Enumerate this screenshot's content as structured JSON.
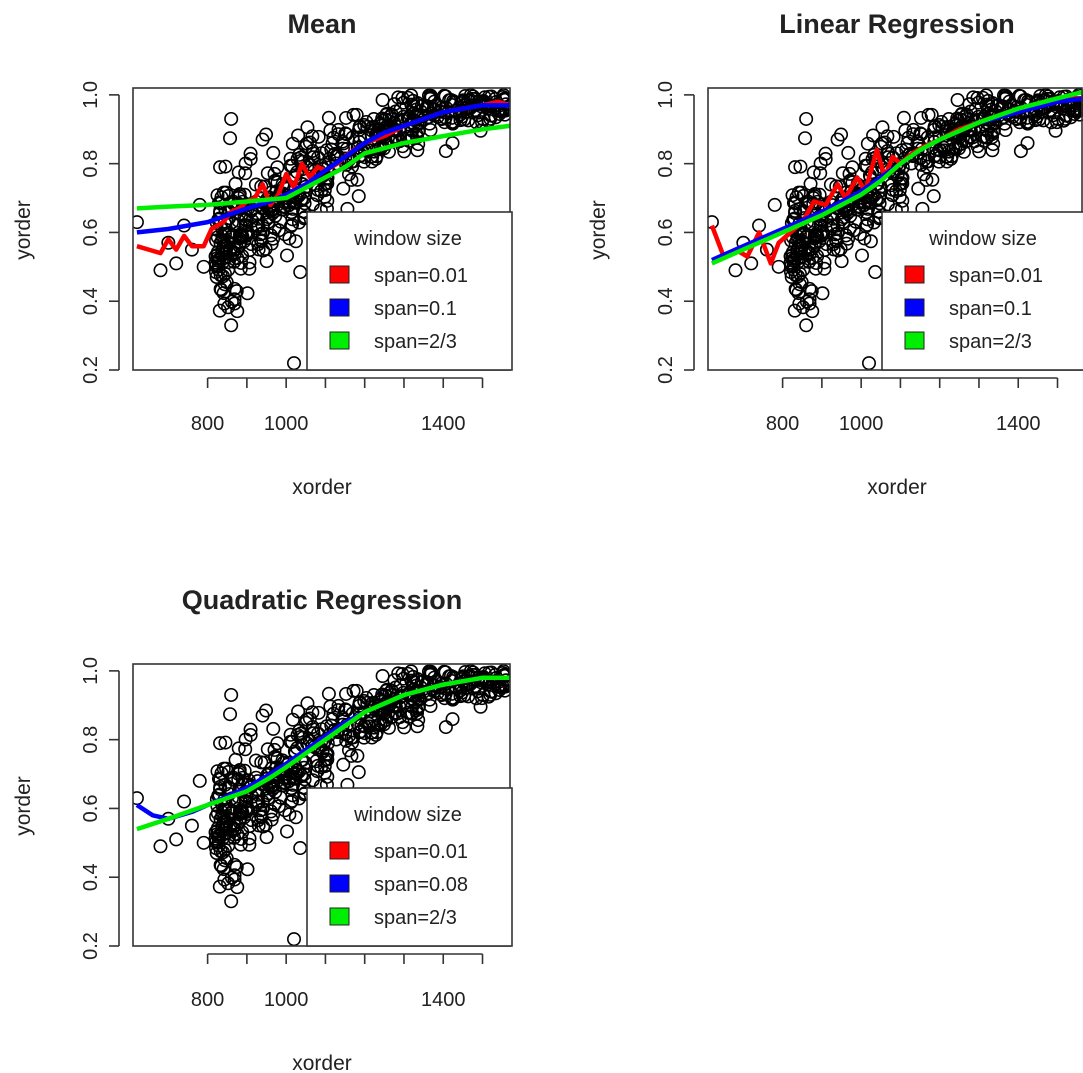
{
  "chart_data": [
    {
      "type": "scatter",
      "title": "Mean",
      "xlabel": "xorder",
      "ylabel": "yorder",
      "xlim": [
        610,
        1570
      ],
      "ylim": [
        0.2,
        1.02
      ],
      "x_ticks": [
        "800",
        "1000",
        "1400"
      ],
      "y_ticks": [
        "0.2",
        "0.4",
        "0.6",
        "0.8",
        "1.0"
      ],
      "legend": {
        "title": "window size",
        "position": "bottom-right",
        "entries": [
          {
            "label": "span=0.01",
            "color": "#ff0000"
          },
          {
            "label": "span=0.1",
            "color": "#0000ff"
          },
          {
            "label": "span=2/3",
            "color": "#00ee00"
          }
        ]
      },
      "outliers": [
        [
          620,
          0.63
        ],
        [
          860,
          0.93
        ],
        [
          860,
          0.33
        ],
        [
          1020,
          0.22
        ],
        [
          680,
          0.49
        ],
        [
          720,
          0.51
        ],
        [
          760,
          0.55
        ],
        [
          790,
          0.5
        ],
        [
          740,
          0.62
        ],
        [
          830,
          0.64
        ],
        [
          780,
          0.68
        ],
        [
          940,
          0.87
        ],
        [
          700,
          0.57
        ]
      ],
      "series": [
        {
          "name": "span=0.01",
          "color": "#ff0000",
          "x": [
            620,
            650,
            680,
            700,
            720,
            740,
            760,
            790,
            810,
            840,
            860,
            880,
            900,
            920,
            940,
            960,
            980,
            1000,
            1020,
            1040,
            1060,
            1080,
            1100,
            1130,
            1160,
            1200,
            1250,
            1300,
            1350,
            1400,
            1450,
            1500,
            1540,
            1570
          ],
          "y": [
            0.56,
            0.55,
            0.54,
            0.58,
            0.55,
            0.59,
            0.56,
            0.56,
            0.61,
            0.63,
            0.66,
            0.67,
            0.69,
            0.7,
            0.74,
            0.68,
            0.71,
            0.77,
            0.73,
            0.8,
            0.76,
            0.79,
            0.78,
            0.8,
            0.83,
            0.86,
            0.88,
            0.91,
            0.93,
            0.95,
            0.96,
            0.97,
            0.98,
            0.97
          ]
        },
        {
          "name": "span=0.1",
          "color": "#0000ff",
          "x": [
            620,
            700,
            800,
            900,
            960,
            1000,
            1050,
            1100,
            1150,
            1200,
            1250,
            1300,
            1350,
            1400,
            1450,
            1500,
            1570
          ],
          "y": [
            0.6,
            0.61,
            0.63,
            0.67,
            0.69,
            0.71,
            0.74,
            0.78,
            0.82,
            0.86,
            0.89,
            0.91,
            0.93,
            0.95,
            0.96,
            0.97,
            0.97
          ]
        },
        {
          "name": "span=2/3",
          "color": "#00ee00",
          "x": [
            620,
            700,
            800,
            900,
            1000,
            1050,
            1100,
            1150,
            1200,
            1300,
            1400,
            1500,
            1570
          ],
          "y": [
            0.67,
            0.675,
            0.68,
            0.69,
            0.7,
            0.73,
            0.76,
            0.79,
            0.83,
            0.86,
            0.88,
            0.9,
            0.91
          ]
        }
      ]
    },
    {
      "type": "scatter",
      "title": "Linear Regression",
      "xlabel": "xorder",
      "ylabel": "yorder",
      "xlim": [
        610,
        1570
      ],
      "ylim": [
        0.2,
        1.02
      ],
      "x_ticks": [
        "800",
        "1000",
        "1400"
      ],
      "y_ticks": [
        "0.2",
        "0.4",
        "0.6",
        "0.8",
        "1.0"
      ],
      "legend": {
        "title": "window size",
        "position": "bottom-right",
        "entries": [
          {
            "label": "span=0.01",
            "color": "#ff0000"
          },
          {
            "label": "span=0.1",
            "color": "#0000ff"
          },
          {
            "label": "span=2/3",
            "color": "#00ee00"
          }
        ]
      },
      "outliers": [
        [
          620,
          0.63
        ],
        [
          860,
          0.93
        ],
        [
          860,
          0.33
        ],
        [
          1020,
          0.22
        ],
        [
          680,
          0.49
        ],
        [
          720,
          0.51
        ],
        [
          760,
          0.55
        ],
        [
          790,
          0.5
        ],
        [
          740,
          0.62
        ],
        [
          830,
          0.64
        ],
        [
          780,
          0.68
        ],
        [
          940,
          0.87
        ],
        [
          700,
          0.57
        ]
      ],
      "series": [
        {
          "name": "span=0.01",
          "color": "#ff0000",
          "x": [
            620,
            650,
            680,
            710,
            740,
            770,
            790,
            820,
            850,
            880,
            910,
            940,
            960,
            990,
            1010,
            1040,
            1060,
            1080,
            1100,
            1130,
            1160,
            1200,
            1250,
            1300,
            1350,
            1400,
            1450,
            1500,
            1540,
            1570
          ],
          "y": [
            0.62,
            0.53,
            0.55,
            0.53,
            0.6,
            0.51,
            0.57,
            0.6,
            0.63,
            0.69,
            0.68,
            0.74,
            0.7,
            0.76,
            0.72,
            0.84,
            0.76,
            0.82,
            0.8,
            0.83,
            0.85,
            0.87,
            0.9,
            0.92,
            0.94,
            0.95,
            0.97,
            0.98,
            0.99,
            0.99
          ]
        },
        {
          "name": "span=0.1",
          "color": "#0000ff",
          "x": [
            620,
            700,
            800,
            900,
            1000,
            1050,
            1100,
            1150,
            1200,
            1300,
            1400,
            1500,
            1570
          ],
          "y": [
            0.52,
            0.56,
            0.61,
            0.66,
            0.72,
            0.76,
            0.8,
            0.84,
            0.87,
            0.92,
            0.95,
            0.98,
            0.99
          ]
        },
        {
          "name": "span=2/3",
          "color": "#00ee00",
          "x": [
            620,
            700,
            800,
            900,
            1000,
            1050,
            1100,
            1150,
            1200,
            1300,
            1400,
            1500,
            1570
          ],
          "y": [
            0.51,
            0.55,
            0.6,
            0.65,
            0.71,
            0.75,
            0.8,
            0.84,
            0.87,
            0.92,
            0.96,
            0.99,
            1.01
          ]
        }
      ]
    },
    {
      "type": "scatter",
      "title": "Quadratic Regression",
      "xlabel": "xorder",
      "ylabel": "yorder",
      "xlim": [
        610,
        1570
      ],
      "ylim": [
        0.2,
        1.02
      ],
      "x_ticks": [
        "800",
        "1000",
        "1400"
      ],
      "y_ticks": [
        "0.2",
        "0.4",
        "0.6",
        "0.8",
        "1.0"
      ],
      "legend": {
        "title": "window size",
        "position": "bottom-right",
        "entries": [
          {
            "label": "span=0.01",
            "color": "#ff0000"
          },
          {
            "label": "span=0.08",
            "color": "#0000ff"
          },
          {
            "label": "span=2/3",
            "color": "#00ee00"
          }
        ]
      },
      "outliers": [
        [
          620,
          0.63
        ],
        [
          860,
          0.93
        ],
        [
          860,
          0.33
        ],
        [
          1020,
          0.22
        ],
        [
          680,
          0.49
        ],
        [
          720,
          0.51
        ],
        [
          760,
          0.55
        ],
        [
          790,
          0.5
        ],
        [
          740,
          0.62
        ],
        [
          830,
          0.64
        ],
        [
          780,
          0.68
        ],
        [
          940,
          0.87
        ],
        [
          700,
          0.57
        ]
      ],
      "series": [
        {
          "name": "span=0.08",
          "color": "#0000ff",
          "x": [
            620,
            660,
            700,
            760,
            820,
            900,
            960,
            1000,
            1050,
            1100,
            1150,
            1200,
            1300,
            1400,
            1500,
            1570
          ],
          "y": [
            0.61,
            0.58,
            0.57,
            0.59,
            0.62,
            0.66,
            0.7,
            0.73,
            0.77,
            0.81,
            0.85,
            0.88,
            0.93,
            0.96,
            0.98,
            0.98
          ]
        },
        {
          "name": "span=2/3",
          "color": "#00ee00",
          "x": [
            620,
            700,
            800,
            900,
            960,
            1000,
            1050,
            1100,
            1150,
            1200,
            1300,
            1400,
            1500,
            1570
          ],
          "y": [
            0.54,
            0.57,
            0.61,
            0.65,
            0.69,
            0.72,
            0.76,
            0.8,
            0.84,
            0.88,
            0.93,
            0.96,
            0.98,
            0.98
          ]
        }
      ]
    }
  ]
}
